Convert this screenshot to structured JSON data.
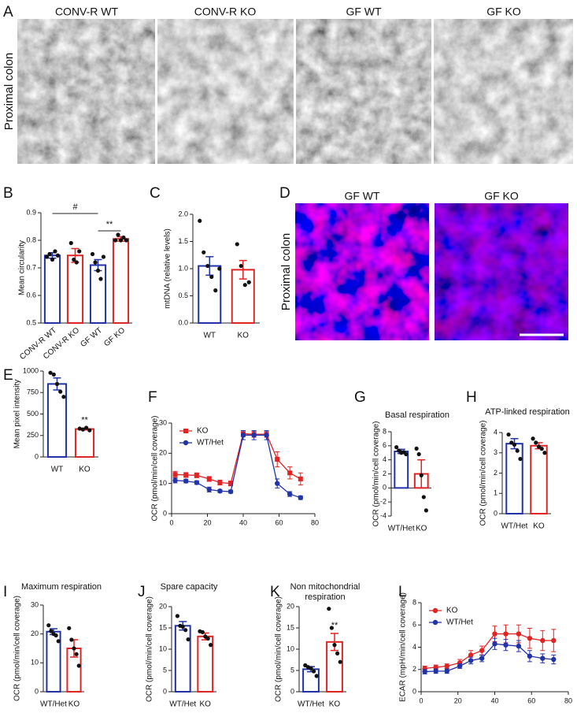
{
  "panel_labels": [
    "A",
    "B",
    "C",
    "D",
    "E",
    "F",
    "G",
    "H",
    "I",
    "J",
    "K",
    "L"
  ],
  "images": [
    {
      "titles": [
        "CONV-R WT",
        "CONV-R KO",
        "GF WT",
        "GF KO"
      ],
      "row_label": "Proximal colon"
    },
    {
      "titles": [
        "GF WT",
        "GF KO"
      ],
      "row_label": "Proximal colon"
    }
  ],
  "chart_data": [
    {
      "type": "bar",
      "ylabel": "Mean circularity",
      "categories": [
        "CONV-R WT",
        "CONV-R KO",
        "GF WT",
        "GF KO"
      ],
      "values": [
        0.745,
        0.745,
        0.71,
        0.805
      ],
      "errors": [
        0.01,
        0.025,
        0.02,
        0.008
      ],
      "points": [
        [
          0.74,
          0.75,
          0.73,
          0.76,
          0.745
        ],
        [
          0.79,
          0.73,
          0.72,
          0.76
        ],
        [
          0.75,
          0.72,
          0.69,
          0.66,
          0.74
        ],
        [
          0.8,
          0.82,
          0.8,
          0.81,
          0.8
        ]
      ],
      "colors": [
        "#2233a8",
        "#e02424",
        "#2233a8",
        "#e02424"
      ],
      "ylim": [
        0.5,
        0.9
      ],
      "yticks": [
        0.5,
        0.6,
        0.7,
        0.8,
        0.9
      ],
      "annotations": [
        "#",
        "**"
      ]
    },
    {
      "type": "bar",
      "ylabel": "mtDNA (relative levels)",
      "categories": [
        "WT",
        "KO"
      ],
      "values": [
        1.05,
        0.98
      ],
      "errors": [
        0.17,
        0.17
      ],
      "points": [
        [
          1.88,
          1.3,
          1.05,
          0.85,
          0.6,
          1.0
        ],
        [
          1.45,
          1.05,
          0.7,
          0.75
        ]
      ],
      "colors": [
        "#2233a8",
        "#e02424"
      ],
      "ylim": [
        0,
        2
      ],
      "yticks": [
        {
          "value": 0,
          "label": "0.0"
        },
        0.5,
        {
          "value": 1,
          "label": "1.0"
        },
        1.5,
        {
          "value": 2,
          "label": "2.0"
        }
      ]
    },
    {
      "type": "bar",
      "ylabel": "Mean pixel intensity",
      "categories": [
        "WT",
        "KO"
      ],
      "values": [
        850,
        325
      ],
      "errors": [
        70,
        10
      ],
      "points": [
        [
          980,
          960,
          850,
          760,
          700
        ],
        [
          330,
          320,
          340,
          310
        ]
      ],
      "colors": [
        "#2233a8",
        "#e02424"
      ],
      "ylim": [
        0,
        1000
      ],
      "yticks": [
        0,
        250,
        500,
        750,
        1000
      ],
      "annotations": [
        "**"
      ]
    },
    {
      "type": "line",
      "ylabel": "OCR (pmol/min/cell coverage)",
      "x": [
        2,
        8,
        14,
        21,
        27,
        33,
        40,
        46,
        53,
        59,
        66,
        72
      ],
      "series": [
        {
          "name": "KO",
          "color": "#e02424",
          "marker": "square",
          "values": [
            13,
            12.8,
            12.7,
            11.5,
            10.3,
            10,
            26.5,
            26.3,
            26.3,
            18,
            13.5,
            11.5
          ],
          "errors": [
            1,
            0.8,
            0.8,
            0.8,
            0.8,
            0.8,
            1,
            1,
            1,
            2.5,
            2,
            2
          ]
        },
        {
          "name": "WT/Het",
          "color": "#2233a8",
          "marker": "circle",
          "values": [
            11,
            10.8,
            10.3,
            8,
            7.5,
            7.3,
            26,
            26,
            26,
            10,
            6.5,
            5.3
          ],
          "errors": [
            0.8,
            0.6,
            0.6,
            0.8,
            0.5,
            0.5,
            1.5,
            1.5,
            1.5,
            1.5,
            0.8,
            0.6
          ]
        }
      ],
      "xlim": [
        0,
        80
      ],
      "xticks": [
        0,
        20,
        40,
        60,
        80
      ],
      "ylim": [
        0,
        30
      ],
      "yticks": [
        0,
        10,
        20,
        30
      ],
      "legend": "upper left"
    },
    {
      "type": "bar",
      "title": "Basal respiration",
      "ylabel": "OCR (pmol/min/cell coverage)",
      "categories": [
        "WT/Het",
        "KO"
      ],
      "values": [
        5.2,
        2
      ],
      "errors": [
        0.3,
        2
      ],
      "points": [
        [
          5.8,
          5.3,
          5,
          5.1,
          4.8
        ],
        [
          5.6,
          4.8,
          1.8,
          -1.3,
          -3.2
        ]
      ],
      "colors": [
        "#2233a8",
        "#e02424"
      ],
      "ylim": [
        -4,
        8
      ],
      "yticks": [
        -4,
        -2,
        0,
        2,
        4,
        6,
        8
      ]
    },
    {
      "type": "bar",
      "title": "ATP-linked respiration",
      "ylabel": "OCR (pmol/min/cell coverage)",
      "categories": [
        "WT/Het",
        "KO"
      ],
      "values": [
        3.45,
        3.35
      ],
      "errors": [
        0.25,
        0.15
      ],
      "points": [
        [
          3.9,
          3.5,
          3.4,
          3.1,
          2.7
        ],
        [
          3.7,
          3.5,
          3.3,
          3.2,
          3.0
        ]
      ],
      "colors": [
        "#2233a8",
        "#e02424"
      ],
      "ylim": [
        0,
        4
      ],
      "yticks": [
        0,
        1,
        2,
        3,
        4
      ]
    },
    {
      "type": "bar",
      "title": "Maximum respiration",
      "ylabel": "OCR (pmol/min/cell coverage)",
      "categories": [
        "WT/Het",
        "KO"
      ],
      "values": [
        20.8,
        15
      ],
      "errors": [
        1,
        3
      ],
      "points": [
        [
          23,
          21,
          20,
          19.5,
          17.5
        ],
        [
          22,
          18,
          15,
          13,
          9
        ]
      ],
      "colors": [
        "#2233a8",
        "#e02424"
      ],
      "ylim": [
        0,
        30
      ],
      "yticks": [
        0,
        10,
        20,
        30
      ]
    },
    {
      "type": "bar",
      "title": "Spare capacity",
      "ylabel": "OCR (pmol/min/cell coverage)",
      "categories": [
        "WT/Het",
        "KO"
      ],
      "values": [
        15.5,
        13
      ],
      "errors": [
        1,
        0.8
      ],
      "points": [
        [
          17.8,
          15.5,
          15.3,
          14.5,
          12.3
        ],
        [
          14.2,
          14,
          13,
          12.5,
          11
        ]
      ],
      "colors": [
        "#2233a8",
        "#e02424"
      ],
      "ylim": [
        0,
        20
      ],
      "yticks": [
        0,
        5,
        10,
        15,
        20
      ]
    },
    {
      "type": "bar",
      "title": [
        "Non mitochondrial",
        "respiration"
      ],
      "ylabel": "OCR (pmol/min/cell coverage)",
      "categories": [
        "WT/Het",
        "KO"
      ],
      "values": [
        5.3,
        11.7
      ],
      "errors": [
        0.6,
        2
      ],
      "points": [
        [
          6.2,
          5.8,
          5.5,
          4.8,
          3.7
        ],
        [
          19.5,
          15,
          11,
          9,
          7
        ]
      ],
      "colors": [
        "#2233a8",
        "#e02424"
      ],
      "ylim": [
        0,
        20
      ],
      "yticks": [
        0,
        5,
        10,
        15,
        20
      ],
      "annotations": [
        "**"
      ]
    },
    {
      "type": "line",
      "ylabel": "ECAR (mpH/min/cell coverage)",
      "x": [
        2,
        8,
        14,
        21,
        27,
        33,
        40,
        46,
        53,
        59,
        66,
        72
      ],
      "series": [
        {
          "name": "KO",
          "color": "#e02424",
          "marker": "circle",
          "values": [
            2.1,
            2.2,
            2.3,
            2.6,
            3.3,
            3.7,
            5.2,
            5.2,
            5.2,
            4.8,
            4.6,
            4.6
          ],
          "errors": [
            0.2,
            0.2,
            0.2,
            0.3,
            0.4,
            0.4,
            0.7,
            0.8,
            0.8,
            0.9,
            0.9,
            1.0
          ]
        },
        {
          "name": "WT/Het",
          "color": "#2233a8",
          "marker": "circle",
          "values": [
            1.8,
            1.85,
            1.85,
            2.3,
            2.8,
            3,
            4.3,
            4.2,
            4.1,
            3.2,
            3,
            2.9
          ],
          "errors": [
            0.2,
            0.2,
            0.2,
            0.2,
            0.3,
            0.3,
            0.5,
            0.5,
            0.5,
            0.5,
            0.4,
            0.4
          ]
        }
      ],
      "xlim": [
        0,
        80
      ],
      "xticks": [
        0,
        20,
        40,
        60,
        80
      ],
      "ylim": [
        0,
        8
      ],
      "yticks": [
        0,
        2,
        4,
        6,
        8
      ],
      "legend": "upper left"
    }
  ]
}
